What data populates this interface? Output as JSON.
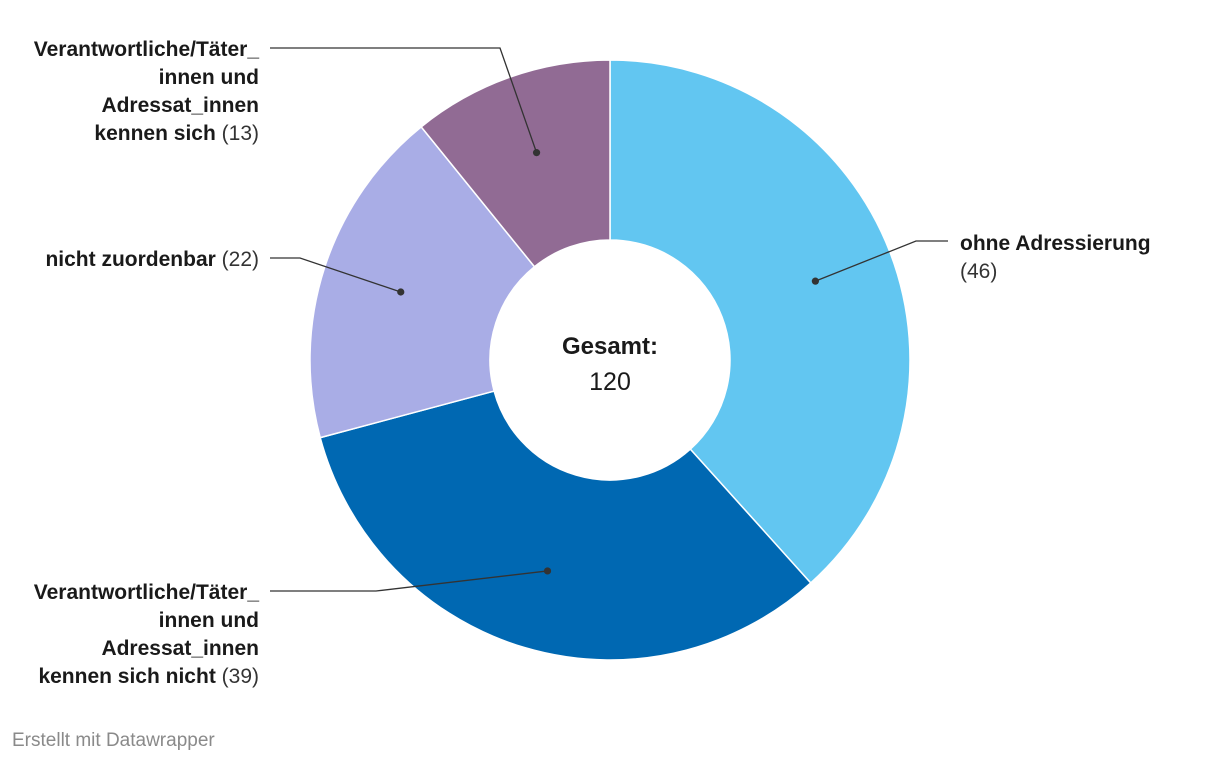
{
  "chart_data": {
    "type": "pie",
    "variant": "donut",
    "center_title": "Gesamt:",
    "center_value": "120",
    "slices": [
      {
        "lines": [
          "ohne Adressierung"
        ],
        "value_text": "(46)",
        "value": 46,
        "color": "#62c6f1"
      },
      {
        "lines": [
          "Verantwortliche/Täter_",
          "innen und",
          "Adressat_innen",
          "kennen sich nicht"
        ],
        "value_text": "(39)",
        "value": 39,
        "color": "#0068b2"
      },
      {
        "lines": [
          "nicht zuordenbar"
        ],
        "value_text": "(22)",
        "value": 22,
        "color": "#a9ade6"
      },
      {
        "lines": [
          "Verantwortliche/Täter_",
          "innen und",
          "Adressat_innen",
          "kennen sich"
        ],
        "value_text": "(13)",
        "value": 13,
        "color": "#916b94"
      }
    ]
  },
  "footer": {
    "credit": "Erstellt mit Datawrapper"
  }
}
